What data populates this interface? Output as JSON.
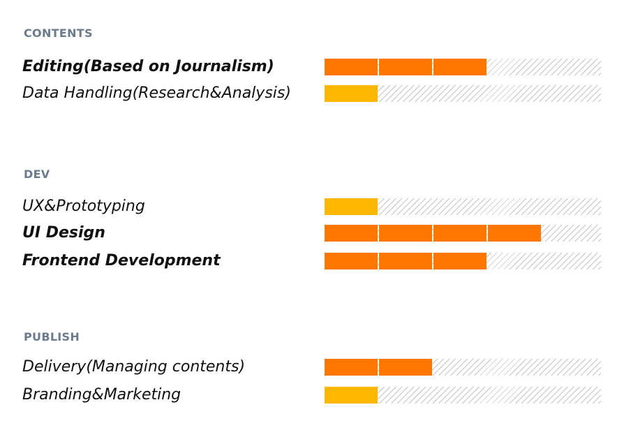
{
  "colors": {
    "high": "#ff7700",
    "low": "#ffb700",
    "section_title": "#6b7b8c"
  },
  "scale": {
    "max_segments": 5
  },
  "sections": [
    {
      "title": "CONTENTS",
      "skills": [
        {
          "label": "Editing(Based on Journalism)",
          "level": 3,
          "emphasis": true,
          "color": "high"
        },
        {
          "label": "Data Handling(Research&Analysis)",
          "level": 1,
          "emphasis": false,
          "color": "low"
        }
      ]
    },
    {
      "title": "DEV",
      "skills": [
        {
          "label": "UX&Prototyping",
          "level": 1,
          "emphasis": false,
          "color": "low"
        },
        {
          "label": "UI Design",
          "level": 4,
          "emphasis": true,
          "color": "high"
        },
        {
          "label": "Frontend Development",
          "level": 3,
          "emphasis": true,
          "color": "high"
        }
      ]
    },
    {
      "title": "PUBLISH",
      "skills": [
        {
          "label": "Delivery(Managing contents)",
          "level": 2,
          "emphasis": false,
          "color": "high"
        },
        {
          "label": "Branding&Marketing",
          "level": 1,
          "emphasis": false,
          "color": "low"
        }
      ]
    }
  ]
}
